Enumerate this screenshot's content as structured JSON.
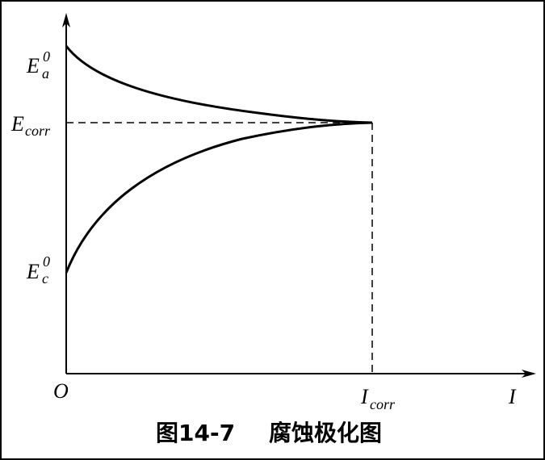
{
  "y_axis_labels": [
    {
      "base": "E",
      "superscript": "0",
      "subscript": "a"
    },
    {
      "base": "E",
      "subscript": "corr"
    },
    {
      "base": "E",
      "superscript": "0",
      "subscript": "c"
    }
  ],
  "x_axis_labels": [
    {
      "base": "I",
      "subscript": "corr"
    },
    {
      "base": "I"
    }
  ],
  "origin": "O",
  "caption": {
    "number": "图14-7",
    "title": "腐蚀极化图"
  }
}
